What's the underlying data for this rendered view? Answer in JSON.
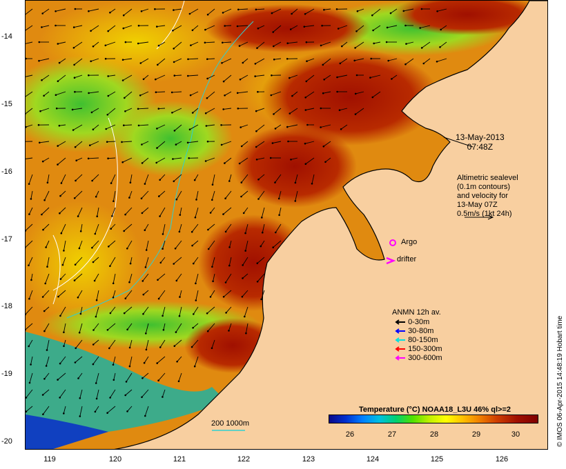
{
  "lat_ticks": [
    "-14",
    "-15",
    "-16",
    "-17",
    "-18",
    "-19",
    "-20"
  ],
  "lon_ticks": [
    "119",
    "120",
    "121",
    "122",
    "123",
    "124",
    "125",
    "126"
  ],
  "timestamp": {
    "date": "13-May-2013",
    "time": "07:48Z"
  },
  "altimetry_note": [
    "Altimetric sealevel",
    "(0.1m contours)",
    "and velocity for",
    "13-May 07Z",
    "0.5m/s (1kt 24h)"
  ],
  "markers": {
    "argo_label": "Argo",
    "drifter_label": "drifter"
  },
  "anmn_legend": {
    "title": "ANMN 12h av.",
    "items": [
      {
        "label": "0-30m",
        "color": "#000000"
      },
      {
        "label": "30-80m",
        "color": "#0000ff"
      },
      {
        "label": "80-150m",
        "color": "#00e0e0"
      },
      {
        "label": "150-300m",
        "color": "#ff0000"
      },
      {
        "label": "300-600m",
        "color": "#ff00ff"
      }
    ]
  },
  "depth_contour_label": "200  1000m",
  "colorbar": {
    "title": "Temperature (°C) NOAA18_L3U 46% ql>=2",
    "ticks": [
      "26",
      "27",
      "28",
      "29",
      "30"
    ]
  },
  "credit": "© IMOS 06-Apr-2015 14:48:19 Hobart time",
  "colors": {
    "land": "#f8cfa0",
    "warm_water": "#a01000",
    "mid_water": "#e08a10",
    "cool_water": "#50c020",
    "arrow": "#000000"
  }
}
